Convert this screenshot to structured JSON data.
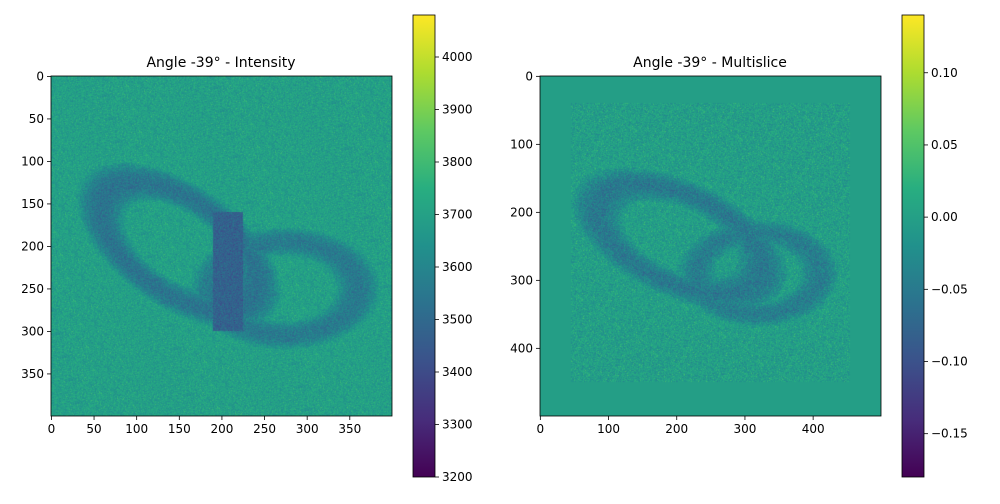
{
  "chart_data": [
    {
      "type": "heatmap",
      "title": "Angle -39° - Intensity",
      "colormap": "viridis",
      "shape": [
        400,
        400
      ],
      "x_ticks": [
        0,
        50,
        100,
        150,
        200,
        250,
        300,
        350
      ],
      "y_ticks": [
        0,
        50,
        100,
        150,
        200,
        250,
        300,
        350
      ],
      "x_tick_labels": [
        "0",
        "50",
        "100",
        "150",
        "200",
        "250",
        "300",
        "350"
      ],
      "y_tick_labels": [
        "0",
        "50",
        "100",
        "150",
        "200",
        "250",
        "300",
        "350"
      ],
      "colorbar": {
        "range": [
          3200,
          4080
        ],
        "ticks": [
          3200,
          3300,
          3400,
          3500,
          3600,
          3700,
          3800,
          3900,
          4000
        ],
        "tick_labels": [
          "3200",
          "3300",
          "3400",
          "3500",
          "3600",
          "3700",
          "3800",
          "3900",
          "4000"
        ]
      },
      "background_value": 3700,
      "features": [
        {
          "shape": "elliptical ring",
          "center": [
            150,
            200
          ],
          "radii": [
            105,
            55
          ],
          "rotation_deg": 35,
          "value": 3540
        },
        {
          "shape": "elliptical ring",
          "center": [
            275,
            250
          ],
          "radii": [
            85,
            55
          ],
          "rotation_deg": 0,
          "value": 3560
        },
        {
          "shape": "overlap band",
          "x_range": [
            190,
            225
          ],
          "y_range": [
            160,
            300
          ],
          "value": 3480
        }
      ]
    },
    {
      "type": "heatmap",
      "title": "Angle -39° - Multislice",
      "colormap": "viridis",
      "shape": [
        500,
        500
      ],
      "x_ticks": [
        0,
        100,
        200,
        300,
        400
      ],
      "y_ticks": [
        0,
        100,
        200,
        300,
        400
      ],
      "x_tick_labels": [
        "0",
        "100",
        "200",
        "300",
        "400"
      ],
      "y_tick_labels": [
        "0",
        "100",
        "200",
        "300",
        "400"
      ],
      "colorbar": {
        "range": [
          -0.18,
          0.14
        ],
        "ticks": [
          -0.15,
          -0.1,
          -0.05,
          0.0,
          0.05,
          0.1
        ],
        "tick_labels": [
          "−0.15",
          "−0.10",
          "−0.05",
          "0.00",
          "0.05",
          "0.10"
        ]
      },
      "background_value": 0.0,
      "textured_region": {
        "x_range": [
          45,
          455
        ],
        "y_range": [
          40,
          450
        ]
      },
      "features": [
        {
          "shape": "elliptical ring",
          "center": [
            205,
            240
          ],
          "radii": [
            130,
            65
          ],
          "rotation_deg": 25,
          "value": -0.05
        },
        {
          "shape": "elliptical ring",
          "center": [
            320,
            290
          ],
          "radii": [
            90,
            60
          ],
          "rotation_deg": 0,
          "value": -0.045
        }
      ]
    }
  ]
}
